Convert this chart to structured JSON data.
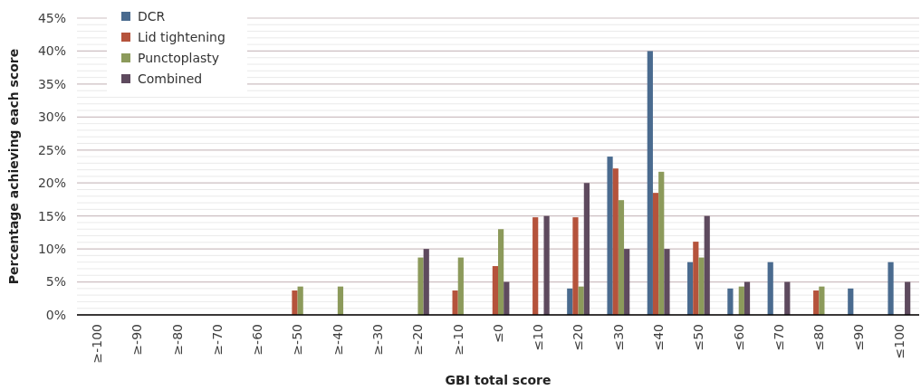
{
  "chart_data": {
    "type": "bar",
    "xlabel": "GBI total score",
    "ylabel": "Percentage achieving each score",
    "categories": [
      "≥-100",
      "≥-90",
      "≥-80",
      "≥-70",
      "≥-60",
      "≥-50",
      "≥-40",
      "≥-30",
      "≥-20",
      "≥-10",
      "≤0",
      "≤10",
      "≤20",
      "≤30",
      "≤40",
      "≤50",
      "≤60",
      "≤70",
      "≤80",
      "≤90",
      "≤100"
    ],
    "series": [
      {
        "name": "DCR",
        "color": "#4a6b8f",
        "values": [
          0,
          0,
          0,
          0,
          0,
          0,
          0,
          0,
          0,
          0,
          0,
          0,
          4,
          24,
          40,
          8,
          4,
          8,
          0,
          4,
          8
        ]
      },
      {
        "name": "Lid tightening",
        "color": "#b5533c",
        "values": [
          0,
          0,
          0,
          0,
          0,
          3.7,
          0,
          0,
          0,
          3.7,
          7.4,
          14.8,
          14.8,
          22.2,
          18.5,
          11.1,
          0,
          0,
          3.7,
          0,
          0
        ]
      },
      {
        "name": "Punctoplasty",
        "color": "#8c9a5b",
        "values": [
          0,
          0,
          0,
          0,
          0,
          4.3,
          4.3,
          0,
          8.7,
          8.7,
          13,
          0,
          4.3,
          17.4,
          21.7,
          8.7,
          4.3,
          0,
          4.3,
          0,
          0
        ]
      },
      {
        "name": "Combined",
        "color": "#5e4a5e",
        "values": [
          0,
          0,
          0,
          0,
          0,
          0,
          0,
          0,
          10,
          0,
          5,
          15,
          20,
          10,
          10,
          15,
          5,
          5,
          0,
          0,
          5
        ]
      }
    ],
    "ylim": [
      0,
      45
    ],
    "yticks": [
      {
        "value": 0,
        "label": "0%"
      },
      {
        "value": 1,
        "label": null
      },
      {
        "value": 2,
        "label": null
      },
      {
        "value": 3,
        "label": null
      },
      {
        "value": 4,
        "label": null
      },
      {
        "value": 5,
        "label": "5%"
      },
      {
        "value": 6,
        "label": null
      },
      {
        "value": 7,
        "label": null
      },
      {
        "value": 8,
        "label": null
      },
      {
        "value": 9,
        "label": null
      },
      {
        "value": 10,
        "label": "10%"
      },
      {
        "value": 11,
        "label": null
      },
      {
        "value": 12,
        "label": null
      },
      {
        "value": 13,
        "label": null
      },
      {
        "value": 14,
        "label": null
      },
      {
        "value": 15,
        "label": "15%"
      },
      {
        "value": 16,
        "label": null
      },
      {
        "value": 17,
        "label": null
      },
      {
        "value": 18,
        "label": null
      },
      {
        "value": 19,
        "label": null
      },
      {
        "value": 20,
        "label": "20%"
      },
      {
        "value": 21,
        "label": null
      },
      {
        "value": 22,
        "label": null
      },
      {
        "value": 23,
        "label": null
      },
      {
        "value": 24,
        "label": null
      },
      {
        "value": 25,
        "label": "25%"
      },
      {
        "value": 26,
        "label": null
      },
      {
        "value": 27,
        "label": null
      },
      {
        "value": 28,
        "label": null
      },
      {
        "value": 29,
        "label": null
      },
      {
        "value": 30,
        "label": "30%"
      },
      {
        "value": 31,
        "label": null
      },
      {
        "value": 32,
        "label": null
      },
      {
        "value": 33,
        "label": null
      },
      {
        "value": 34,
        "label": null
      },
      {
        "value": 35,
        "label": "35%"
      },
      {
        "value": 36,
        "label": null
      },
      {
        "value": 37,
        "label": null
      },
      {
        "value": 38,
        "label": null
      },
      {
        "value": 39,
        "label": null
      },
      {
        "value": 40,
        "label": "40%"
      },
      {
        "value": 41,
        "label": null
      },
      {
        "value": 42,
        "label": null
      },
      {
        "value": 43,
        "label": null
      },
      {
        "value": 44,
        "label": null
      },
      {
        "value": 45,
        "label": "45%"
      }
    ],
    "grid": "y",
    "legend": "top left"
  }
}
